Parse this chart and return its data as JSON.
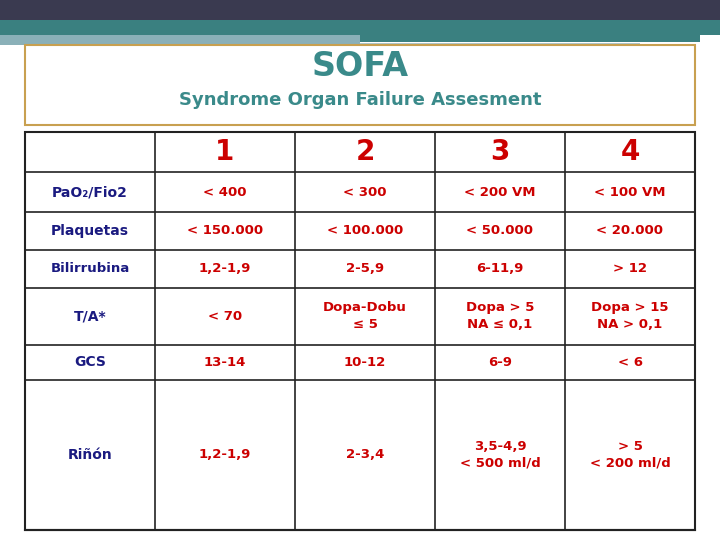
{
  "title": "SOFA",
  "subtitle": "Syndrome Organ Failure Assesment",
  "title_color": "#3a8a8a",
  "subtitle_color": "#3a8a8a",
  "header_nums": [
    "1",
    "2",
    "3",
    "4"
  ],
  "header_color": "#CC0000",
  "row_labels": [
    "PaO₂/Fio2",
    "Plaquetas",
    "Bilirrubina",
    "T/A*",
    "GCS",
    "Riñón"
  ],
  "row_label_color": "#1a1a80",
  "cell_color": "#CC0000",
  "table_data": [
    [
      "< 400",
      "< 300",
      "< 200 VM",
      "< 100 VM"
    ],
    [
      "< 150.000",
      "< 100.000",
      "< 50.000",
      "< 20.000"
    ],
    [
      "1,2-1,9",
      "2-5,9",
      "6-11,9",
      "> 12"
    ],
    [
      "< 70",
      "Dopa-Dobu\n≤ 5",
      "Dopa > 5\nNA ≤ 0,1",
      "Dopa > 15\nNA > 0,1"
    ],
    [
      "13-14",
      "10-12",
      "6-9",
      "< 6"
    ],
    [
      "1,2-1,9",
      "2-3,4",
      "3,5-4,9\n< 500 ml/d",
      "> 5\n< 200 ml/d"
    ]
  ],
  "bg_color": "#ffffff",
  "title_box_color": "#ffffff",
  "title_box_edge": "#c8a050",
  "table_edge_color": "#222222",
  "top_dark_color": "#3a3a50",
  "top_teal_color": "#3a8080",
  "top_light_teal": "#8ab0b8",
  "top_lighter_teal": "#b0ccd4"
}
